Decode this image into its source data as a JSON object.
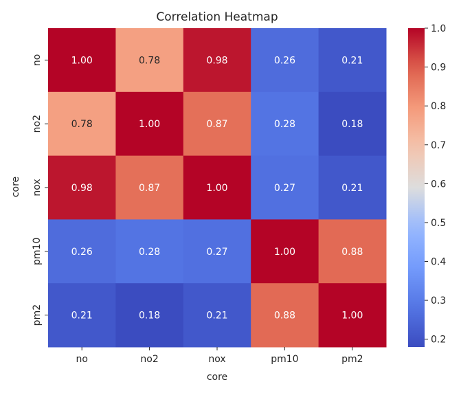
{
  "chart_data": {
    "type": "heatmap",
    "title": "Correlation Heatmap",
    "xlabel": "core",
    "ylabel": "core",
    "x_categories": [
      "no",
      "no2",
      "nox",
      "pm10",
      "pm2"
    ],
    "y_categories": [
      "no",
      "no2",
      "nox",
      "pm10",
      "pm2"
    ],
    "values": [
      [
        1.0,
        0.78,
        0.98,
        0.26,
        0.21
      ],
      [
        0.78,
        1.0,
        0.87,
        0.28,
        0.18
      ],
      [
        0.98,
        0.87,
        1.0,
        0.27,
        0.21
      ],
      [
        0.26,
        0.28,
        0.27,
        1.0,
        0.88
      ],
      [
        0.21,
        0.18,
        0.21,
        0.88,
        1.0
      ]
    ],
    "cell_labels": [
      [
        "1.00",
        "0.78",
        "0.98",
        "0.26",
        "0.21"
      ],
      [
        "0.78",
        "1.00",
        "0.87",
        "0.28",
        "0.18"
      ],
      [
        "0.98",
        "0.87",
        "1.00",
        "0.27",
        "0.21"
      ],
      [
        "0.26",
        "0.28",
        "0.27",
        "1.00",
        "0.88"
      ],
      [
        "0.21",
        "0.18",
        "0.21",
        "0.88",
        "1.00"
      ]
    ],
    "colormap": "coolwarm",
    "colorbar": {
      "range": [
        0.18,
        1.0
      ],
      "ticks": [
        0.2,
        0.3,
        0.4,
        0.5,
        0.6,
        0.7,
        0.8,
        0.9,
        1.0
      ],
      "tick_labels": [
        "0.2",
        "0.3",
        "0.4",
        "0.5",
        "0.6",
        "0.7",
        "0.8",
        "0.9",
        "1.0"
      ]
    },
    "grid": false,
    "legend": "colorbar-right"
  }
}
